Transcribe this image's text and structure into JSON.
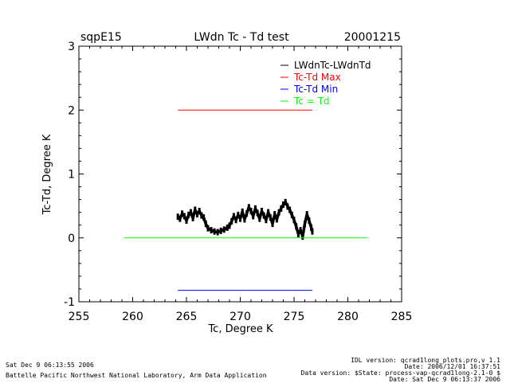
{
  "header": {
    "site": "sqpE15",
    "title": "LWdn Tc - Td test",
    "date": "20001215"
  },
  "chart_data": {
    "type": "line",
    "title": "LWdn Tc - Td test",
    "xlabel": "Tc, Degree K",
    "ylabel": "Tc-Td, Degree K",
    "xlim": [
      255,
      285
    ],
    "ylim": [
      -1.0,
      3.0
    ],
    "x_ticks": [
      "255",
      "260",
      "265",
      "270",
      "275",
      "280",
      "285"
    ],
    "y_ticks": [
      "-1",
      "0",
      "1",
      "2",
      "3"
    ],
    "legend_position": "top-right",
    "legend": [
      {
        "label": "LWdnTc-LWdnTd",
        "color": "#000000"
      },
      {
        "label": "Tc-Td Max",
        "color": "#ff0000"
      },
      {
        "label": "Tc-Td Min",
        "color": "#0000ff"
      },
      {
        "label": "Tc = Td",
        "color": "#00ff00"
      }
    ],
    "series": [
      {
        "name": "LWdnTc-LWdnTd",
        "color": "#000000",
        "x": [
          264.2,
          264.4,
          264.6,
          264.8,
          265.0,
          265.2,
          265.4,
          265.6,
          265.8,
          266.0,
          266.2,
          266.4,
          266.6,
          266.8,
          267.0,
          267.3,
          267.6,
          267.9,
          268.2,
          268.5,
          268.8,
          269.0,
          269.2,
          269.4,
          269.6,
          269.8,
          270.0,
          270.2,
          270.4,
          270.6,
          270.8,
          271.0,
          271.2,
          271.4,
          271.6,
          271.8,
          272.0,
          272.2,
          272.4,
          272.6,
          272.8,
          273.0,
          273.2,
          273.4,
          273.6,
          273.8,
          274.0,
          274.2,
          274.4,
          274.6,
          274.8,
          275.0,
          275.2,
          275.4,
          275.6,
          275.8,
          276.0,
          276.2,
          276.4,
          276.6,
          276.7
        ],
        "y": [
          0.33,
          0.3,
          0.38,
          0.34,
          0.27,
          0.36,
          0.4,
          0.31,
          0.44,
          0.37,
          0.42,
          0.35,
          0.32,
          0.22,
          0.15,
          0.12,
          0.1,
          0.09,
          0.11,
          0.13,
          0.16,
          0.19,
          0.26,
          0.34,
          0.28,
          0.36,
          0.3,
          0.41,
          0.29,
          0.38,
          0.48,
          0.42,
          0.34,
          0.46,
          0.39,
          0.3,
          0.42,
          0.35,
          0.28,
          0.4,
          0.32,
          0.22,
          0.37,
          0.29,
          0.4,
          0.46,
          0.52,
          0.56,
          0.49,
          0.44,
          0.36,
          0.28,
          0.18,
          0.06,
          0.12,
          0.02,
          0.22,
          0.37,
          0.27,
          0.16,
          0.1
        ]
      },
      {
        "name": "Tc-Td Max",
        "color": "#ff0000",
        "x": [
          264.2,
          276.7
        ],
        "y": [
          2.0,
          2.0
        ]
      },
      {
        "name": "Tc-Td Min",
        "color": "#0000ff",
        "x": [
          264.2,
          276.7
        ],
        "y": [
          -0.82,
          -0.82
        ]
      },
      {
        "name": "Tc = Td",
        "color": "#00ff00",
        "x": [
          259.2,
          281.8
        ],
        "y": [
          0.0,
          0.0
        ]
      }
    ]
  },
  "footer": {
    "run_date": "Sat Dec  9 06:13:55 2006",
    "institution": "Battelle Pacific Northwest National Laboratory, Arm Data Application",
    "idl_version": "IDL version: qcrad1long_plots.pro,v 1.1",
    "idl_date": "Date: 2006/12/01 16:37:51",
    "data_version": "Data version: $State: process-vap-qcrad1long-2.1-0 $",
    "data_date": "Date: Sat Dec  9 06:13:37 2006"
  }
}
